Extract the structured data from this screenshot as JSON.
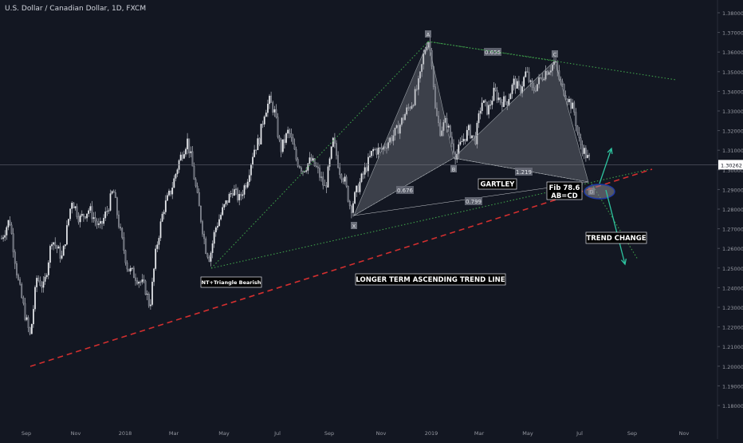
{
  "chart_title": "U.S. Dollar / Canadian Dollar, 1D, FXCM",
  "colors": {
    "background": "#131722",
    "candle": "#d1d4dc",
    "axis_text": "#9598a1",
    "green_dotted": "#3ea04a",
    "red_dashed": "#d32f2f",
    "harmonic_fill": "#8a8d96",
    "teal_arrow": "#2ec4a0",
    "ellipse": "#1e3aa8",
    "price_tag_bg": "#ffffff",
    "label_box_bg": "#000000"
  },
  "chart_data": {
    "type": "candlestick",
    "title": "U.S. Dollar / Canadian Dollar, 1D, FXCM",
    "last_price": "1.30262",
    "y_axis_ticks": [
      "1.38000",
      "1.37000",
      "1.36000",
      "1.35000",
      "1.34000",
      "1.33000",
      "1.32000",
      "1.31000",
      "1.30000",
      "1.29000",
      "1.28000",
      "1.27000",
      "1.26000",
      "1.25000",
      "1.24000",
      "1.23000",
      "1.22000",
      "1.21000",
      "1.20000",
      "1.19000",
      "1.18000"
    ],
    "x_axis_ticks": [
      "Sep",
      "Nov",
      "2018",
      "Mar",
      "May",
      "Jul",
      "Sep",
      "Nov",
      "2019",
      "Mar",
      "May",
      "Jul",
      "Sep",
      "Nov"
    ],
    "ylim": [
      1.175,
      1.383
    ],
    "price_path": [
      [
        "Aug 2017",
        1.265
      ],
      [
        "Sep 2017",
        1.215
      ],
      [
        "Oct 2017",
        1.275
      ],
      [
        "Nov 2017",
        1.285
      ],
      [
        "Dec 2017",
        1.285
      ],
      [
        "Jan 2018",
        1.235
      ],
      [
        "Feb 2018",
        1.28
      ],
      [
        "Mar 2018",
        1.31
      ],
      [
        "Apr 2018",
        1.255
      ],
      [
        "May 2018",
        1.295
      ],
      [
        "Jun 2018",
        1.33
      ],
      [
        "Jul 2018",
        1.31
      ],
      [
        "Aug 2018",
        1.3
      ],
      [
        "Sep 2018",
        1.31
      ],
      [
        "Oct 2018",
        1.28
      ],
      [
        "Nov 2018",
        1.32
      ],
      [
        "Dec 2018",
        1.365
      ],
      [
        "Jan 2019",
        1.32
      ],
      [
        "Feb 2019",
        1.31
      ],
      [
        "Mar 2019",
        1.34
      ],
      [
        "Apr 2019",
        1.335
      ],
      [
        "May 2019",
        1.345
      ],
      [
        "Jun 2019",
        1.355
      ],
      [
        "Jul 2019",
        1.305
      ]
    ],
    "harmonic_pattern": {
      "name": "GARTLEY",
      "points": {
        "X": [
          "Sep 2018",
          1.28
        ],
        "A": [
          "Dec 2018",
          1.365
        ],
        "B": [
          "Feb 2019",
          1.31
        ],
        "C": [
          "Jun 2019",
          1.355
        ],
        "D": [
          "Jul 2019",
          1.295
        ]
      },
      "ratios": [
        "0.676",
        "0.656",
        "1.219",
        "0.799"
      ]
    },
    "annotations": {
      "nt_triangle": "NT+Triangle Bearish",
      "trend_line": "LONGER TERM ASCENDING TREND LINE",
      "gartley": "GARTLEY",
      "fib_1": "Fib 78.6",
      "fib_2": "AB=CD",
      "trend_change": "TREND CHANGE"
    },
    "point_labels": [
      "X",
      "A",
      "B",
      "C",
      "D"
    ]
  }
}
